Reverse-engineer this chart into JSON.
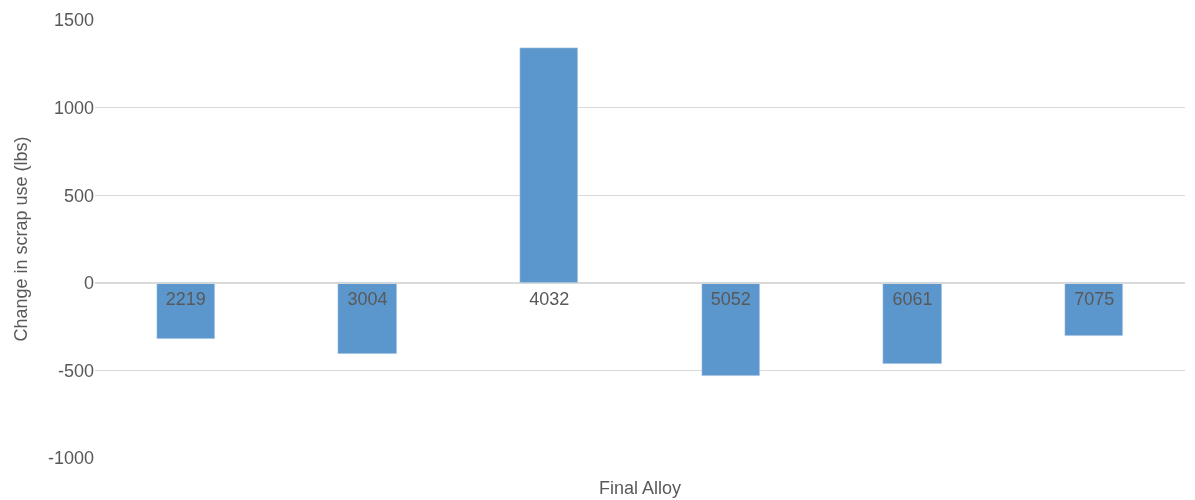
{
  "chart_data": {
    "type": "bar",
    "xlabel": "Final Alloy",
    "ylabel": "Change in scrap use (lbs)",
    "categories": [
      "2219",
      "3004",
      "4032",
      "5052",
      "6061",
      "7075"
    ],
    "values": [
      -320,
      -405,
      1340,
      -530,
      -465,
      -305
    ],
    "color": "#5b96cc",
    "ylim": [
      -1000,
      1500
    ],
    "yticks": [
      -1000,
      -500,
      0,
      500,
      1000,
      1500
    ],
    "grid": "y"
  }
}
